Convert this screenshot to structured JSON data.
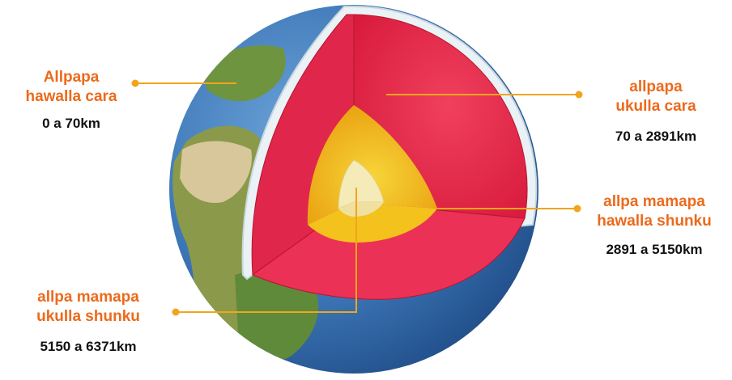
{
  "colors": {
    "accent": "#ec6a1c",
    "crust": "#eaf2f6",
    "mantle": "#e8264a",
    "outer_core": "#f2b814",
    "inner_core": "#f4e8a8",
    "ocean": "#3b74b5",
    "land": "#6b8f3a"
  },
  "layers": [
    {
      "title": "Allpapa\nhawalla cara",
      "range": "0 a 70km"
    },
    {
      "title": "allpapa\nukulla cara",
      "range": "70 a 2891km"
    },
    {
      "title": "allpa mamapa\nhawalla shunku",
      "range": "2891 a 5150km"
    },
    {
      "title": "allpa mamapa\nukulla shunku",
      "range": "5150 a 6371km"
    }
  ]
}
